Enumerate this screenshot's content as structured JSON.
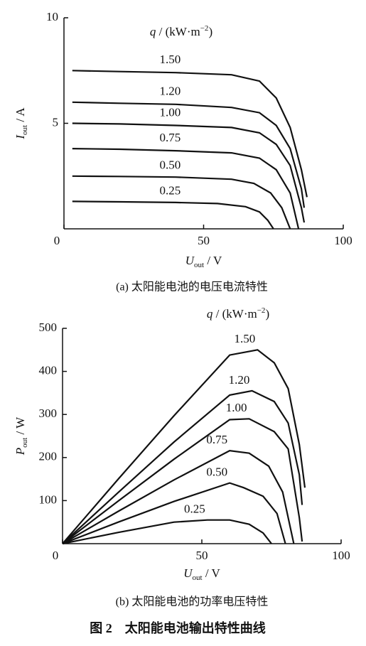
{
  "chart_data": [
    {
      "type": "line",
      "ylabel_symbol": "I",
      "ylabel_subscript": "out",
      "ylabel_unit": " / A",
      "xlabel_symbol": "U",
      "xlabel_subscript": "out",
      "xlabel_unit": " / V",
      "legend_title_symbol": "q",
      "legend_title_unit": " / (kW·m",
      "legend_title_exponent": "−2",
      "legend_title_close": ")",
      "caption": "(a) 太阳能电池的电压电流特性",
      "xlim": [
        0,
        100
      ],
      "xticks": [
        0,
        50,
        100
      ],
      "ylim": [
        0,
        10
      ],
      "yticks": [
        5,
        10
      ],
      "series": [
        {
          "name": "1.50",
          "color": "#111111",
          "x": [
            3,
            20,
            40,
            60,
            70,
            76,
            81,
            85,
            87
          ],
          "values": [
            7.5,
            7.45,
            7.4,
            7.3,
            7.0,
            6.2,
            4.8,
            2.8,
            1.5
          ]
        },
        {
          "name": "1.20",
          "color": "#111111",
          "x": [
            3,
            20,
            40,
            60,
            70,
            76,
            81,
            85,
            86
          ],
          "values": [
            6.0,
            5.95,
            5.9,
            5.75,
            5.5,
            4.9,
            3.8,
            1.9,
            1.0
          ]
        },
        {
          "name": "1.00",
          "color": "#111111",
          "x": [
            3,
            20,
            40,
            60,
            70,
            76,
            81,
            85,
            86
          ],
          "values": [
            5.0,
            4.97,
            4.9,
            4.8,
            4.55,
            4.0,
            3.0,
            1.0,
            0.3
          ]
        },
        {
          "name": "0.75",
          "color": "#111111",
          "x": [
            3,
            20,
            40,
            60,
            70,
            76,
            81,
            84
          ],
          "values": [
            3.8,
            3.77,
            3.7,
            3.6,
            3.35,
            2.8,
            1.7,
            0
          ]
        },
        {
          "name": "0.50",
          "color": "#111111",
          "x": [
            3,
            20,
            40,
            60,
            68,
            74,
            78,
            81
          ],
          "values": [
            2.5,
            2.48,
            2.45,
            2.35,
            2.15,
            1.7,
            1.0,
            0
          ]
        },
        {
          "name": "0.25",
          "color": "#111111",
          "x": [
            3,
            20,
            40,
            55,
            65,
            70,
            73,
            75
          ],
          "values": [
            1.3,
            1.28,
            1.25,
            1.2,
            1.05,
            0.8,
            0.4,
            0
          ]
        }
      ]
    },
    {
      "type": "line",
      "ylabel_symbol": "P",
      "ylabel_subscript": "out",
      "ylabel_unit": " / W",
      "xlabel_symbol": "U",
      "xlabel_subscript": "out",
      "xlabel_unit": " / V",
      "legend_title_symbol": "q",
      "legend_title_unit": " / (kW·m",
      "legend_title_exponent": "−2",
      "legend_title_close": ")",
      "caption": "(b) 太阳能电池的功率电压特性",
      "xlim": [
        0,
        100
      ],
      "xticks": [
        0,
        50,
        100
      ],
      "ylim": [
        0,
        500
      ],
      "yticks": [
        100,
        200,
        300,
        400,
        500
      ],
      "series": [
        {
          "name": "1.50",
          "color": "#111111",
          "x": [
            0,
            20,
            40,
            60,
            70,
            76,
            81,
            85,
            87
          ],
          "values": [
            0,
            150,
            297,
            438,
            450,
            420,
            360,
            230,
            130
          ]
        },
        {
          "name": "1.20",
          "color": "#111111",
          "x": [
            0,
            20,
            40,
            60,
            68,
            76,
            81,
            85,
            86
          ],
          "values": [
            0,
            119,
            236,
            345,
            355,
            330,
            280,
            160,
            90
          ]
        },
        {
          "name": "1.00",
          "color": "#111111",
          "x": [
            0,
            20,
            40,
            60,
            67,
            76,
            81,
            85,
            86
          ],
          "values": [
            0,
            99,
            196,
            288,
            290,
            260,
            220,
            60,
            5
          ]
        },
        {
          "name": "0.75",
          "color": "#111111",
          "x": [
            0,
            20,
            40,
            60,
            67,
            74,
            79,
            83
          ],
          "values": [
            0,
            75,
            148,
            216,
            210,
            180,
            120,
            0
          ]
        },
        {
          "name": "0.50",
          "color": "#111111",
          "x": [
            0,
            20,
            40,
            60,
            65,
            72,
            77,
            80
          ],
          "values": [
            0,
            50,
            98,
            141,
            130,
            110,
            70,
            0
          ]
        },
        {
          "name": "0.25",
          "color": "#111111",
          "x": [
            0,
            20,
            40,
            52,
            60,
            67,
            72,
            75
          ],
          "values": [
            0,
            26,
            50,
            55,
            55,
            45,
            25,
            0
          ]
        }
      ]
    }
  ],
  "figure_caption": "图 2　太阳能电池输出特性曲线"
}
